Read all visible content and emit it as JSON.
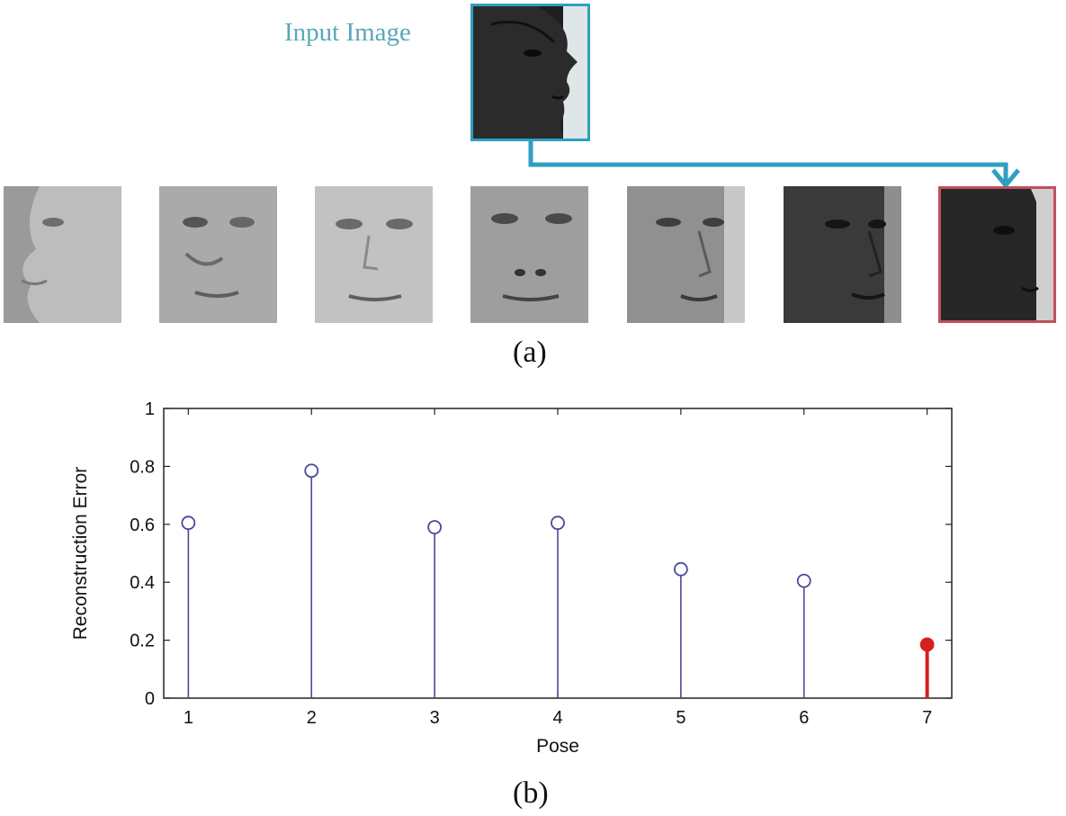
{
  "panel_a": {
    "input_label": "Input Image",
    "caption": "(a)",
    "pose_images": [
      {
        "icon": "face-profile-sketch",
        "tone": "#b9b9b9"
      },
      {
        "icon": "face-half-profile-sketch",
        "tone": "#a8a8a8"
      },
      {
        "icon": "face-frontal-sketch",
        "tone": "#bdbdbd"
      },
      {
        "icon": "face-frontal-sketch",
        "tone": "#9a9a9a"
      },
      {
        "icon": "face-three-quarter",
        "tone": "#8f8f8f"
      },
      {
        "icon": "face-three-quarter-dark",
        "tone": "#3a3a3a"
      },
      {
        "icon": "face-profile-dark",
        "tone": "#2a2a2a"
      }
    ]
  },
  "chart_data": {
    "type": "stem",
    "xlabel": "Pose",
    "ylabel": "Reconstruction Error",
    "x": [
      1,
      2,
      3,
      4,
      5,
      6,
      7
    ],
    "values": [
      0.605,
      0.785,
      0.59,
      0.605,
      0.445,
      0.405,
      0.185
    ],
    "highlight_index": 6,
    "xlim": [
      0.8,
      7.2
    ],
    "ylim": [
      0,
      1
    ],
    "xticks": [
      "1",
      "2",
      "3",
      "4",
      "5",
      "6",
      "7"
    ],
    "yticks": [
      "0",
      "0.2",
      "0.4",
      "0.6",
      "0.8",
      "1"
    ],
    "colors": {
      "stem": "#4a4a9a",
      "highlight": "#d82020"
    }
  },
  "panel_b": {
    "caption": "(b)"
  }
}
